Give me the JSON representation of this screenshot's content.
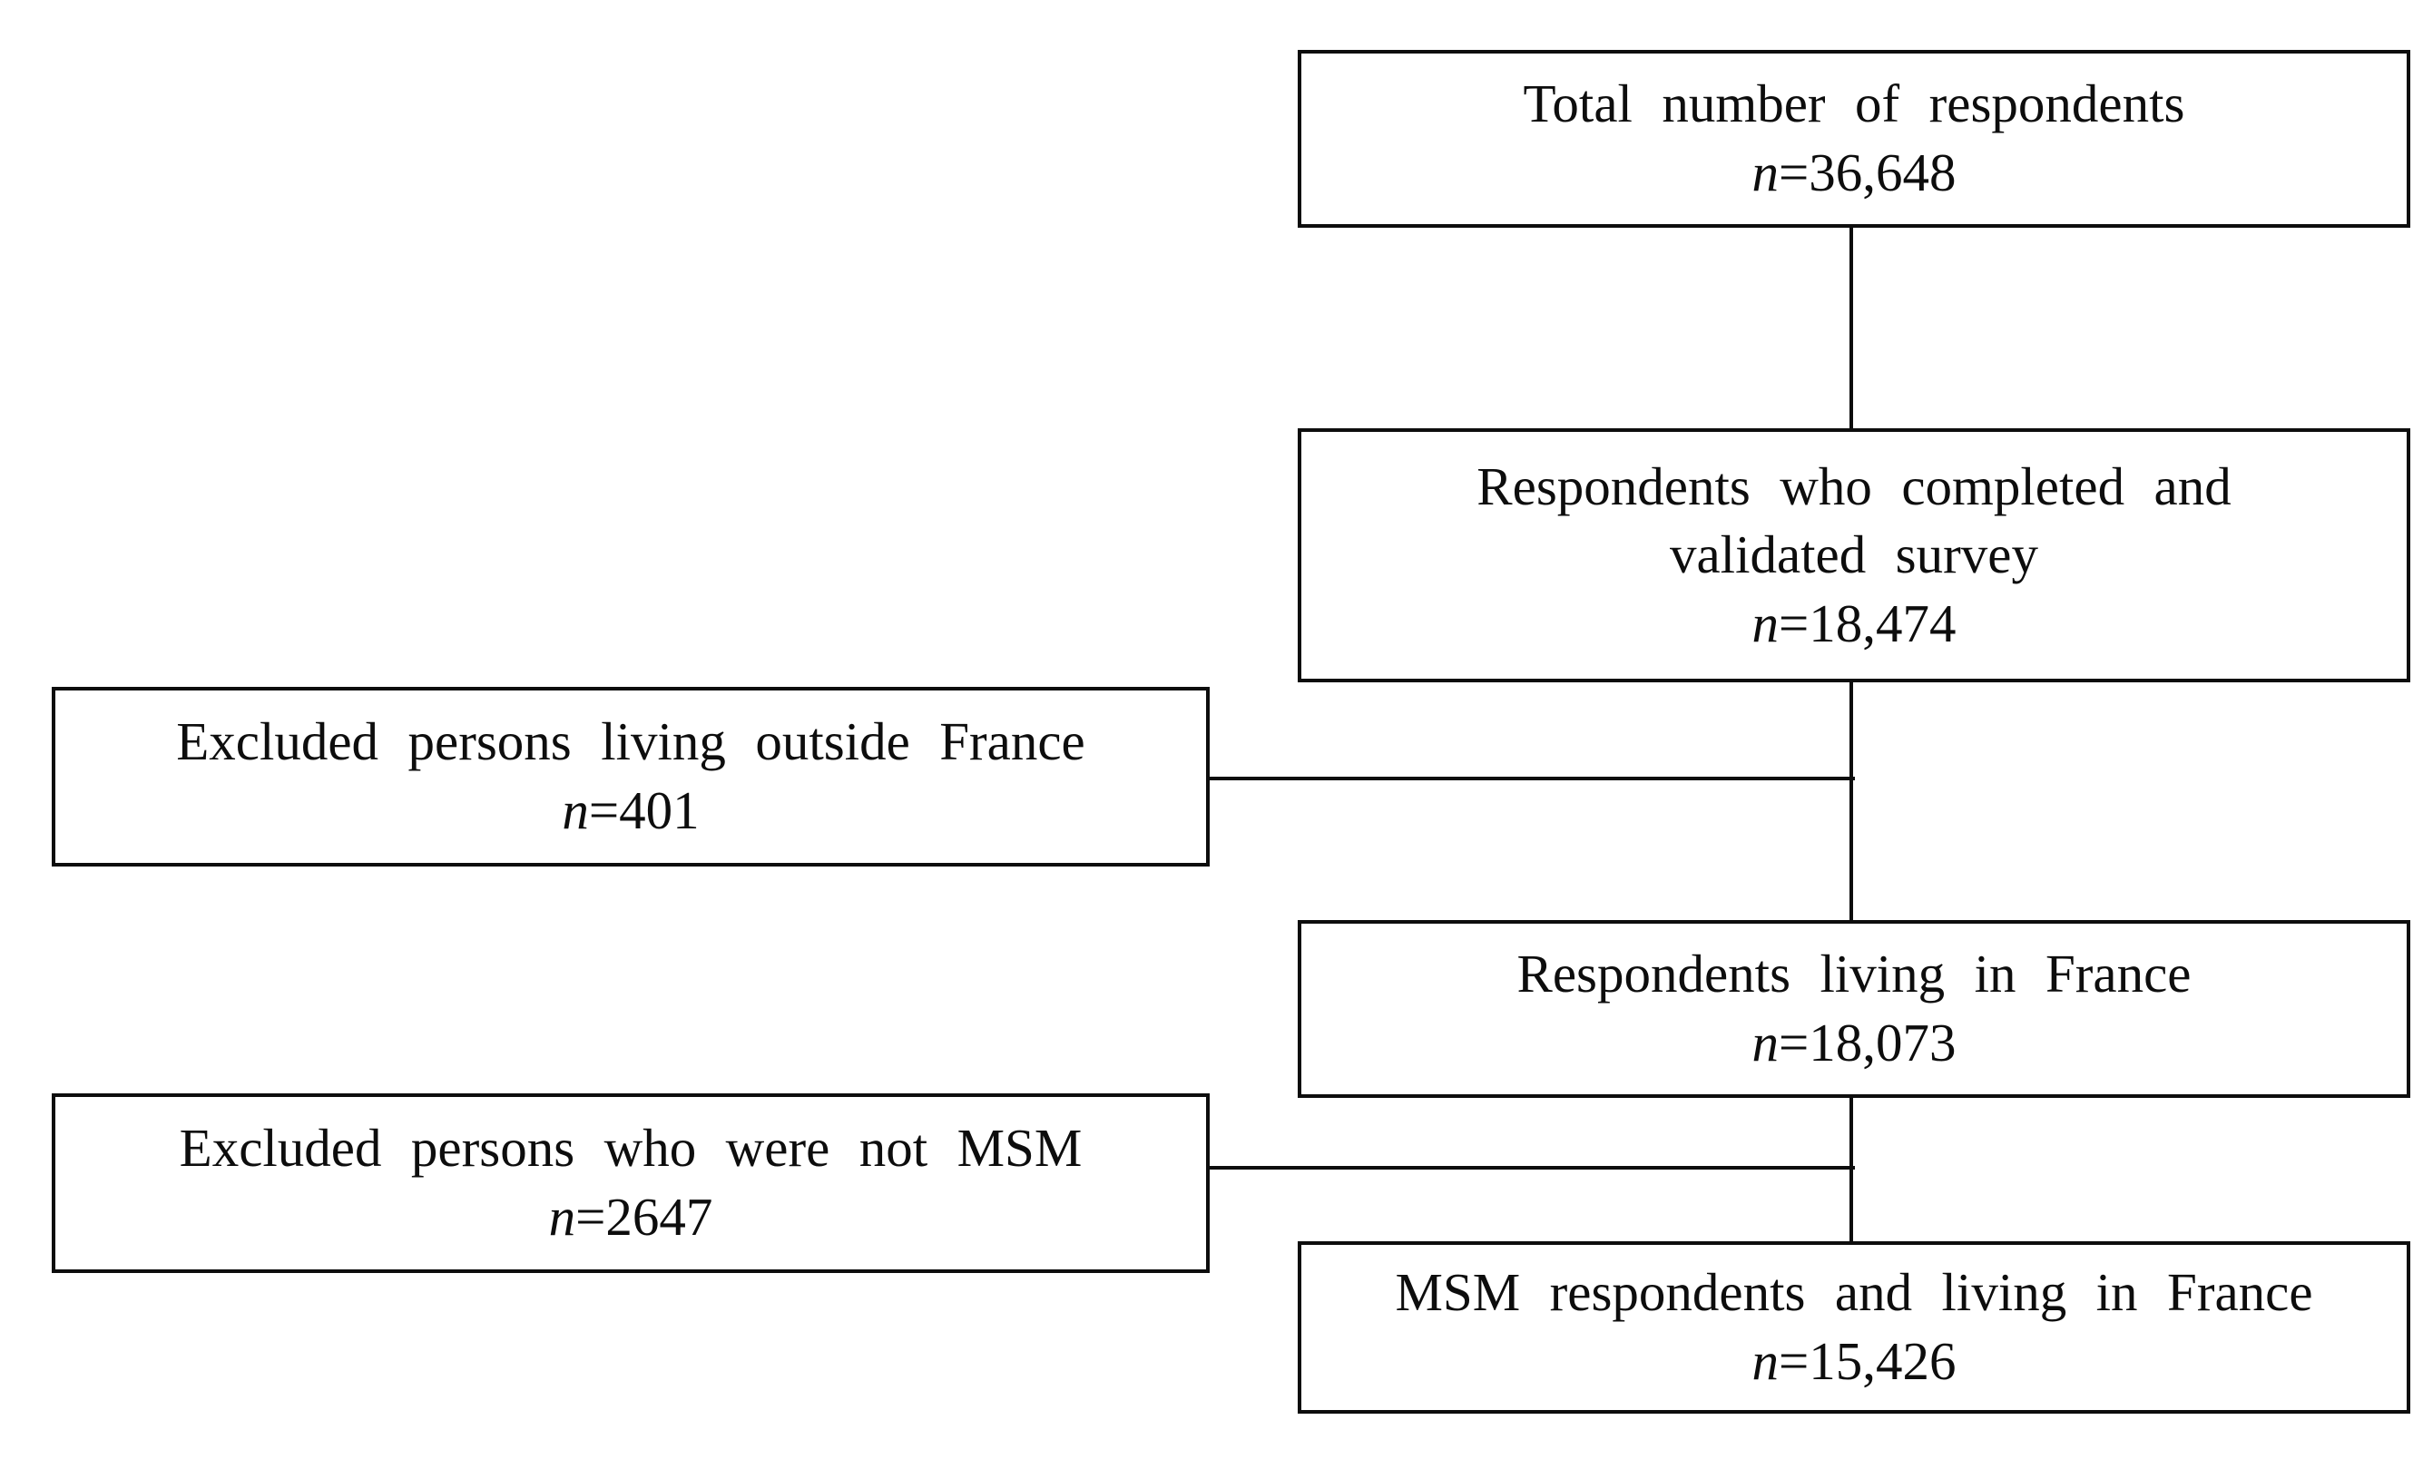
{
  "figure": {
    "type": "study-flow-diagram",
    "background_color": "#ffffff",
    "border_color": "#0d0d0d",
    "text_color": "#0d0d0d"
  },
  "boxes": {
    "total": {
      "lines": [
        "Total number of respondents"
      ],
      "n_symbol": "n",
      "n_value": "=36,648"
    },
    "completed": {
      "lines": [
        "Respondents who completed and",
        "validated survey"
      ],
      "n_symbol": "n",
      "n_value": "=18,474"
    },
    "excluded_outside_france": {
      "lines": [
        "Excluded persons living outside France"
      ],
      "n_symbol": "n",
      "n_value": "=401"
    },
    "living_in_france": {
      "lines": [
        "Respondents living in France"
      ],
      "n_symbol": "n",
      "n_value": "=18,073"
    },
    "excluded_not_msm": {
      "lines": [
        "Excluded persons who were not MSM"
      ],
      "n_symbol": "n",
      "n_value": "=2647"
    },
    "msm_living_in_france": {
      "lines": [
        "MSM respondents and living in France"
      ],
      "n_symbol": "n",
      "n_value": "=15,426"
    }
  }
}
